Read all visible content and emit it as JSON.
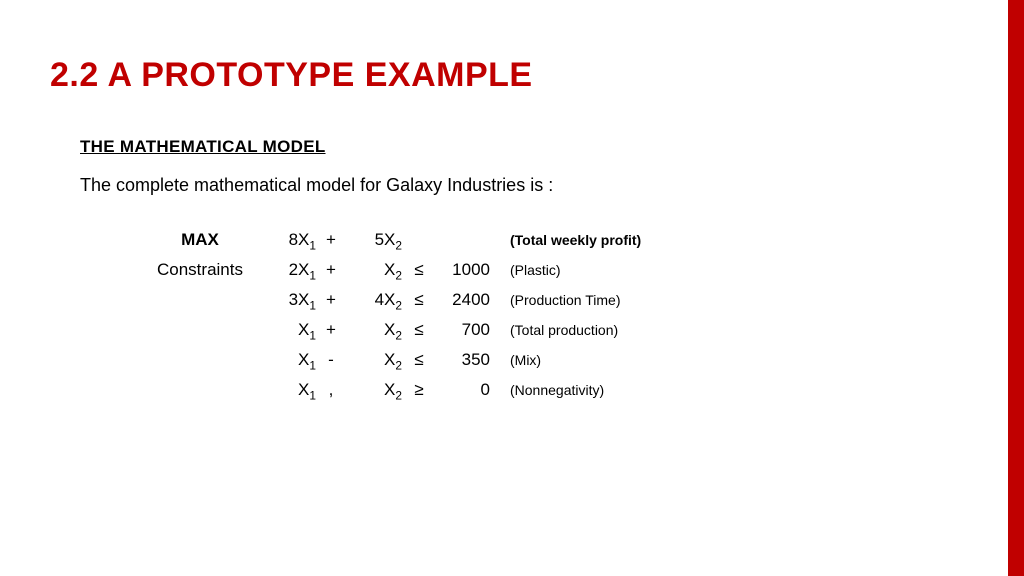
{
  "colors": {
    "accent": "#c00000",
    "background": "#ffffff",
    "text": "#000000"
  },
  "title": "2.2 A PROTOTYPE EXAMPLE",
  "subtitle": "THE MATHEMATICAL MODEL",
  "intro": "The complete mathematical model for Galaxy Industries is :",
  "model": {
    "rows": [
      {
        "label": "MAX",
        "label_bold": true,
        "c1_coef": "8",
        "c1_var": "X",
        "c1_sub": "1",
        "op": "+",
        "c2_coef": "5",
        "c2_var": "X",
        "c2_sub": "2",
        "rel": "",
        "rhs": "",
        "desc": "(Total weekly profit)",
        "desc_bold": true
      },
      {
        "label": "Constraints",
        "label_bold": false,
        "c1_coef": "2",
        "c1_var": "X",
        "c1_sub": "1",
        "op": "+",
        "c2_coef": "",
        "c2_var": "X",
        "c2_sub": "2",
        "rel": "≤",
        "rhs": "1000",
        "desc": "(Plastic)",
        "desc_bold": false
      },
      {
        "label": "",
        "label_bold": false,
        "c1_coef": "3",
        "c1_var": "X",
        "c1_sub": "1",
        "op": "+",
        "c2_coef": "4",
        "c2_var": "X",
        "c2_sub": "2",
        "rel": "≤",
        "rhs": "2400",
        "desc": "(Production Time)",
        "desc_bold": false
      },
      {
        "label": "",
        "label_bold": false,
        "c1_coef": "",
        "c1_var": "X",
        "c1_sub": "1",
        "op": "+",
        "c2_coef": "",
        "c2_var": "X",
        "c2_sub": "2",
        "rel": "≤",
        "rhs": "700",
        "desc": "(Total production)",
        "desc_bold": false
      },
      {
        "label": "",
        "label_bold": false,
        "c1_coef": "",
        "c1_var": "X",
        "c1_sub": "1",
        "op": "-",
        "c2_coef": "",
        "c2_var": "X",
        "c2_sub": "2",
        "rel": "≤",
        "rhs": "350",
        "desc": "(Mix)",
        "desc_bold": false
      },
      {
        "label": "",
        "label_bold": false,
        "c1_coef": "",
        "c1_var": "X",
        "c1_sub": "1",
        "op": ",",
        "c2_coef": "",
        "c2_var": "X",
        "c2_sub": "2",
        "rel": "≥",
        "rhs": "0",
        "desc": "(Nonnegativity)",
        "desc_bold": false
      }
    ]
  }
}
